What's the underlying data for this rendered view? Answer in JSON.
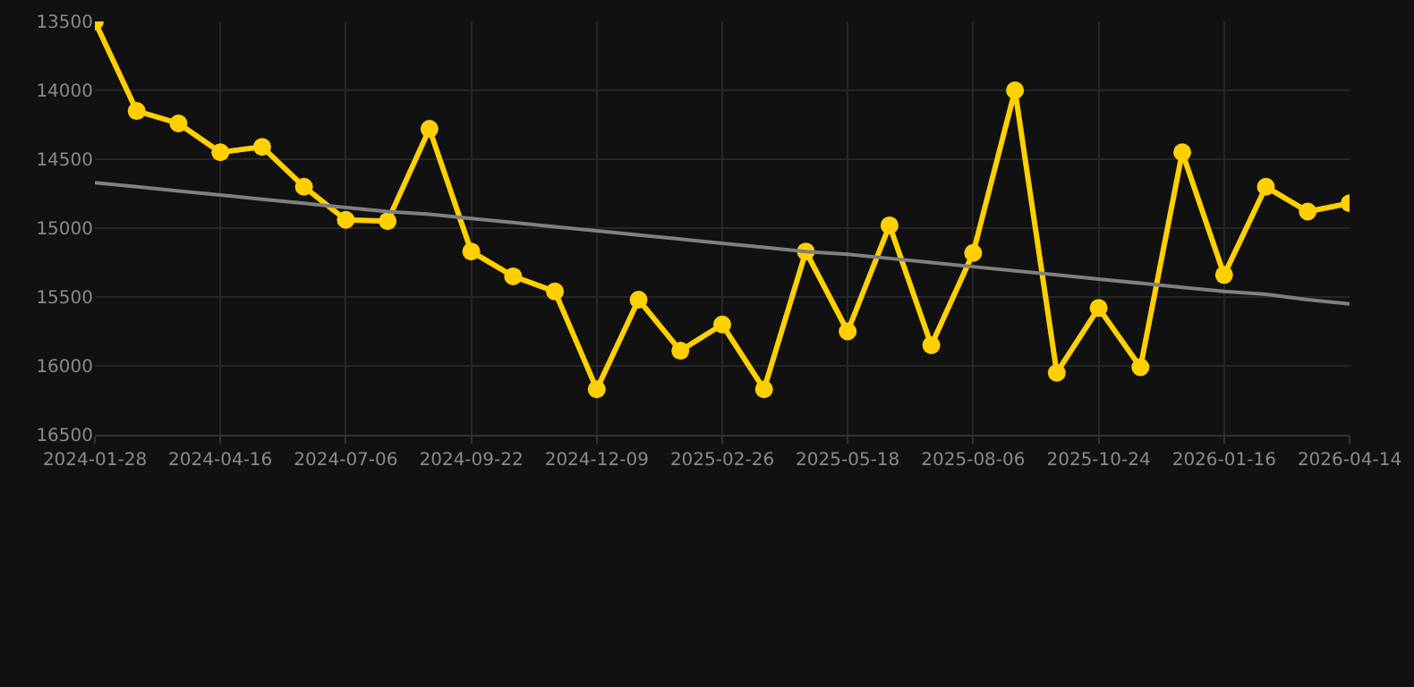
{
  "chart_data": {
    "type": "line",
    "categories": [
      "2024-01-28",
      null,
      null,
      "2024-04-16",
      null,
      null,
      "2024-07-06",
      null,
      null,
      "2024-09-22",
      null,
      null,
      "2024-12-09",
      null,
      null,
      "2025-02-26",
      null,
      null,
      "2025-05-18",
      null,
      null,
      "2025-08-06",
      null,
      null,
      "2025-10-24",
      null,
      null,
      "2026-01-16",
      null,
      null,
      "2026-04-14"
    ],
    "series": [
      {
        "color": "#ffd000",
        "marker": "circle",
        "values": [
          13500,
          14150,
          14240,
          14450,
          14410,
          14700,
          14940,
          14950,
          14280,
          15170,
          15350,
          15460,
          16170,
          15520,
          15890,
          15700,
          16170,
          15170,
          15750,
          14980,
          15850,
          15180,
          14000,
          16050,
          15580,
          16010,
          14450,
          15340,
          14700,
          14880,
          14820
        ]
      },
      {
        "color": "#808080",
        "marker": "none",
        "values": [
          14670,
          14700,
          14730,
          14760,
          14790,
          14820,
          14850,
          14880,
          14900,
          14930,
          14960,
          14990,
          15020,
          15050,
          15080,
          15110,
          15140,
          15170,
          15190,
          15220,
          15250,
          15280,
          15310,
          15340,
          15370,
          15400,
          15430,
          15460,
          15480,
          15520,
          15550
        ]
      }
    ],
    "ylim": [
      16500,
      13500
    ],
    "yticks": [
      13500,
      14000,
      14500,
      15000,
      15500,
      16000,
      16500
    ],
    "grid": true
  }
}
